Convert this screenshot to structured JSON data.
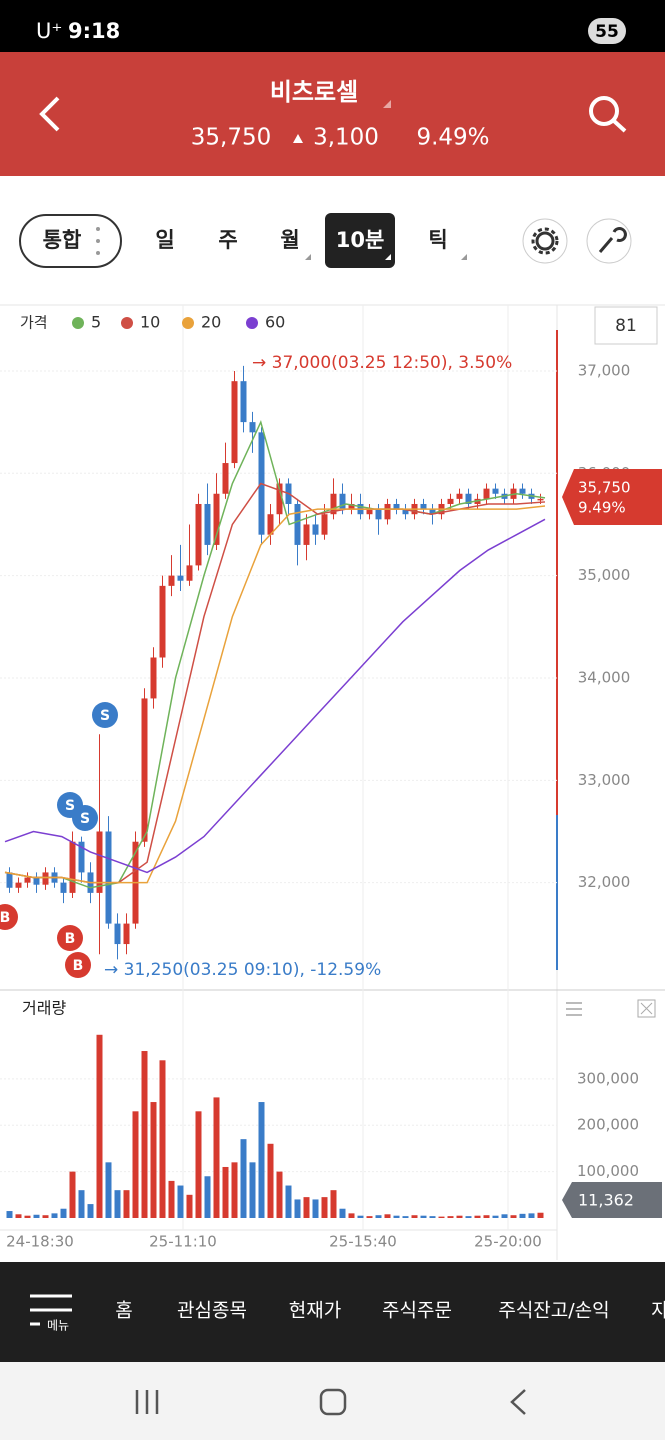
{
  "status_bar": {
    "carrier": "U⁺",
    "time": "9:18",
    "battery": "55"
  },
  "header": {
    "title": "비츠로셀",
    "price": "35,750",
    "change": "3,100",
    "change_rate": "9.49%"
  },
  "tabs": [
    "통합",
    "일",
    "주",
    "월",
    "10분",
    "틱"
  ],
  "count_box": "81",
  "chart_data": {
    "type": "candlestick",
    "legend_title": "가격",
    "up_color": "#d63a2f",
    "down_color": "#3a7cc8",
    "series": [
      {
        "name": "5",
        "color": "#6fb35a",
        "values": [
          32100,
          32050,
          32050,
          31950,
          32000,
          32500,
          34000,
          35000,
          35900,
          36500,
          35500,
          35600,
          35700,
          35650,
          35650,
          35600,
          35700,
          35750,
          35800,
          35760
        ]
      },
      {
        "name": "10",
        "color": "#cf4f45",
        "values": [
          32100,
          32050,
          32050,
          32000,
          32000,
          32200,
          33400,
          34600,
          35500,
          35900,
          35800,
          35600,
          35650,
          35650,
          35650,
          35600,
          35650,
          35700,
          35700,
          35720
        ]
      },
      {
        "name": "20",
        "color": "#e9a23b",
        "values": [
          32100,
          32050,
          32050,
          32000,
          32000,
          32000,
          32600,
          33600,
          34600,
          35300,
          35600,
          35650,
          35650,
          35650,
          35650,
          35650,
          35650,
          35650,
          35650,
          35680
        ]
      },
      {
        "name": "60",
        "color": "#7b3fd1",
        "values": [
          32400,
          32500,
          32450,
          32300,
          32200,
          32100,
          32250,
          32450,
          32750,
          33050,
          33350,
          33650,
          33950,
          34250,
          34550,
          34800,
          35050,
          35250,
          35400,
          35550
        ]
      }
    ],
    "candles": [
      [
        32100,
        32150,
        31900,
        31950
      ],
      [
        31950,
        32050,
        31900,
        32000
      ],
      [
        32000,
        32100,
        31950,
        32050
      ],
      [
        32050,
        32100,
        31900,
        31980
      ],
      [
        31980,
        32150,
        31930,
        32100
      ],
      [
        32100,
        32150,
        31950,
        32000
      ],
      [
        32000,
        32050,
        31800,
        31900
      ],
      [
        31900,
        32500,
        31850,
        32400
      ],
      [
        32400,
        32450,
        32000,
        32100
      ],
      [
        32100,
        32200,
        31800,
        31900
      ],
      [
        31900,
        33450,
        31300,
        32500
      ],
      [
        32500,
        32650,
        31550,
        31600
      ],
      [
        31600,
        31700,
        31250,
        31400
      ],
      [
        31400,
        31700,
        31300,
        31600
      ],
      [
        31600,
        32500,
        31550,
        32400
      ],
      [
        32400,
        33900,
        32350,
        33800
      ],
      [
        33800,
        34300,
        33700,
        34200
      ],
      [
        34200,
        35000,
        34100,
        34900
      ],
      [
        34900,
        35200,
        34800,
        35000
      ],
      [
        35000,
        35300,
        34850,
        34950
      ],
      [
        34950,
        35500,
        34900,
        35100
      ],
      [
        35100,
        35800,
        35050,
        35700
      ],
      [
        35700,
        35900,
        35200,
        35300
      ],
      [
        35300,
        36000,
        35250,
        35800
      ],
      [
        35800,
        36300,
        35750,
        36100
      ],
      [
        36100,
        37000,
        36050,
        36900
      ],
      [
        36900,
        37050,
        36400,
        36500
      ],
      [
        36500,
        36600,
        36200,
        36400
      ],
      [
        36400,
        36450,
        35300,
        35400
      ],
      [
        35400,
        35700,
        35300,
        35600
      ],
      [
        35600,
        35950,
        35500,
        35900
      ],
      [
        35900,
        35950,
        35600,
        35700
      ],
      [
        35700,
        35750,
        35100,
        35300
      ],
      [
        35300,
        35600,
        35150,
        35500
      ],
      [
        35500,
        35600,
        35300,
        35400
      ],
      [
        35400,
        35700,
        35350,
        35600
      ],
      [
        35600,
        35950,
        35550,
        35800
      ],
      [
        35800,
        35900,
        35600,
        35650
      ],
      [
        35650,
        35800,
        35600,
        35700
      ],
      [
        35700,
        35800,
        35550,
        35600
      ],
      [
        35600,
        35700,
        35550,
        35650
      ],
      [
        35650,
        35700,
        35400,
        35550
      ],
      [
        35550,
        35750,
        35500,
        35700
      ],
      [
        35700,
        35750,
        35600,
        35650
      ],
      [
        35650,
        35700,
        35550,
        35600
      ],
      [
        35600,
        35750,
        35550,
        35700
      ],
      [
        35700,
        35750,
        35600,
        35650
      ],
      [
        35650,
        35700,
        35500,
        35600
      ],
      [
        35600,
        35750,
        35550,
        35700
      ],
      [
        35700,
        35800,
        35650,
        35750
      ],
      [
        35750,
        35850,
        35700,
        35800
      ],
      [
        35800,
        35850,
        35650,
        35700
      ],
      [
        35700,
        35800,
        35650,
        35750
      ],
      [
        35750,
        35900,
        35700,
        35850
      ],
      [
        35850,
        35900,
        35750,
        35800
      ],
      [
        35800,
        35850,
        35700,
        35750
      ],
      [
        35750,
        35900,
        35700,
        35850
      ],
      [
        35850,
        35900,
        35750,
        35800
      ],
      [
        35800,
        35850,
        35700,
        35750
      ],
      [
        35750,
        35800,
        35700,
        35750
      ]
    ],
    "ylim": [
      31000,
      37400
    ],
    "yticks": [
      {
        "value": 32000,
        "label": "32,000"
      },
      {
        "value": 33000,
        "label": "33,000"
      },
      {
        "value": 34000,
        "label": "34,000"
      },
      {
        "value": 35000,
        "label": "35,000"
      },
      {
        "value": 36000,
        "label": "36,000"
      },
      {
        "value": 37000,
        "label": "37,000"
      }
    ],
    "annotations": [
      "→ 37,000(03.25 12:50), 3.50%",
      "→ 31,250(03.25 09:10), -12.59%"
    ],
    "markers": [
      "S",
      "S",
      "S",
      "B",
      "B",
      "B"
    ],
    "price_badge": {
      "price": "35,750",
      "rate": "9.49%"
    },
    "x_labels": [
      "24-18:30",
      "25-11:10",
      "25-15:40",
      "25-20:00"
    ]
  },
  "volume_chart": {
    "title": "거래량",
    "values": [
      15000,
      8000,
      5000,
      7000,
      6000,
      10000,
      20000,
      100000,
      60000,
      30000,
      395000,
      120000,
      60000,
      60000,
      230000,
      360000,
      250000,
      340000,
      80000,
      70000,
      50000,
      230000,
      90000,
      260000,
      110000,
      120000,
      170000,
      120000,
      250000,
      160000,
      100000,
      70000,
      40000,
      45000,
      40000,
      45000,
      60000,
      20000,
      10000,
      5000,
      4000,
      6000,
      8000,
      5000,
      4000,
      6000,
      5000,
      4000,
      3000,
      4000,
      5000,
      4000,
      5000,
      6000,
      5000,
      8000,
      6000,
      9000,
      10000,
      11362
    ],
    "ylim": [
      0,
      470000
    ],
    "yticks": [
      {
        "value": 100000,
        "label": "100,000"
      },
      {
        "value": 200000,
        "label": "200,000"
      },
      {
        "value": 300000,
        "label": "300,000"
      }
    ],
    "badge": "11,362"
  },
  "nav": {
    "menu": "메뉴",
    "items": [
      "홈",
      "관심종목",
      "현재가",
      "주식주문",
      "주식잔고/손익",
      "자"
    ]
  }
}
